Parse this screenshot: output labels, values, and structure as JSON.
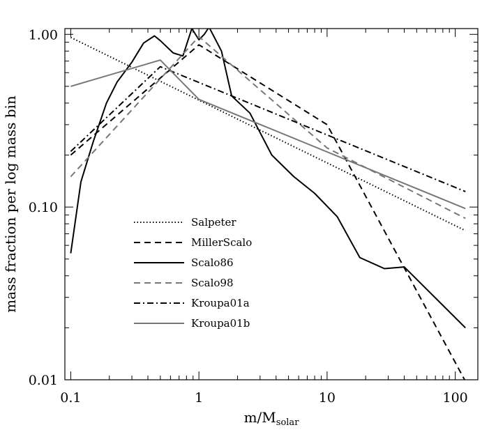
{
  "chart_data": {
    "type": "line",
    "xlabel_main": "m/M",
    "xlabel_sub": "solar",
    "ylabel": "mass fraction per log mass bin",
    "xscale": "log",
    "yscale": "log",
    "xlim": [
      0.09,
      150
    ],
    "ylim": [
      0.01,
      1.08
    ],
    "x_ticks": [
      {
        "value": 0.1,
        "label": "0.1"
      },
      {
        "value": 1,
        "label": "1"
      },
      {
        "value": 10,
        "label": "10"
      },
      {
        "value": 100,
        "label": "100"
      }
    ],
    "y_ticks": [
      {
        "value": 0.01,
        "label": "0.01"
      },
      {
        "value": 0.1,
        "label": "0.10"
      },
      {
        "value": 1.0,
        "label": "1.00"
      }
    ],
    "legend_position": "lower-left",
    "grid": false,
    "series": [
      {
        "name": "Salpeter",
        "color": "#000000",
        "dash": "dotted",
        "points": [
          [
            0.1,
            0.96
          ],
          [
            120,
            0.073
          ]
        ]
      },
      {
        "name": "MillerScalo",
        "color": "#000000",
        "dash": "dashed",
        "points": [
          [
            0.1,
            0.2
          ],
          [
            1.0,
            0.87
          ],
          [
            10,
            0.3
          ],
          [
            120,
            0.0098
          ]
        ]
      },
      {
        "name": "Scalo86",
        "color": "#000000",
        "dash": "solid",
        "points": [
          [
            0.1,
            0.054
          ],
          [
            0.12,
            0.14
          ],
          [
            0.15,
            0.24
          ],
          [
            0.19,
            0.4
          ],
          [
            0.23,
            0.53
          ],
          [
            0.3,
            0.69
          ],
          [
            0.37,
            0.89
          ],
          [
            0.45,
            0.98
          ],
          [
            0.5,
            0.92
          ],
          [
            0.63,
            0.78
          ],
          [
            0.75,
            0.75
          ],
          [
            0.88,
            1.08
          ],
          [
            1.0,
            0.93
          ],
          [
            1.1,
            1.0
          ],
          [
            1.2,
            1.1
          ],
          [
            1.5,
            0.8
          ],
          [
            1.8,
            0.44
          ],
          [
            2.5,
            0.35
          ],
          [
            3.7,
            0.2
          ],
          [
            5.5,
            0.15
          ],
          [
            8,
            0.12
          ],
          [
            12,
            0.088
          ],
          [
            18,
            0.051
          ],
          [
            28,
            0.044
          ],
          [
            40,
            0.045
          ],
          [
            120,
            0.02
          ]
        ]
      },
      {
        "name": "Scalo98",
        "color": "#777777",
        "dash": "dashed",
        "points": [
          [
            0.1,
            0.15
          ],
          [
            1.0,
            0.97
          ],
          [
            10,
            0.22
          ],
          [
            120,
            0.086
          ]
        ]
      },
      {
        "name": "Kroupa01a",
        "color": "#000000",
        "dash": "dashdot",
        "points": [
          [
            0.1,
            0.21
          ],
          [
            0.5,
            0.65
          ],
          [
            120,
            0.123
          ]
        ]
      },
      {
        "name": "Kroupa01b",
        "color": "#777777",
        "dash": "solid",
        "points": [
          [
            0.1,
            0.5
          ],
          [
            0.5,
            0.71
          ],
          [
            1.0,
            0.42
          ],
          [
            120,
            0.098
          ]
        ]
      }
    ]
  }
}
